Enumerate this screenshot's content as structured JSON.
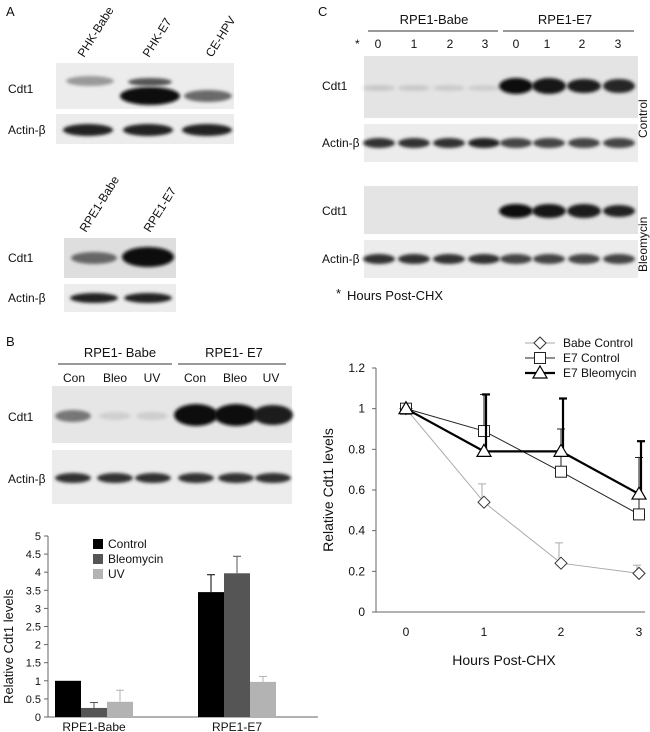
{
  "panels": {
    "A": {
      "letter": "A",
      "top_lanes": [
        "PHK-Babe",
        "PHK-E7",
        "CE-HPV"
      ],
      "bottom_lanes": [
        "RPE1-Babe",
        "RPE1-E7"
      ],
      "row_cdt1": "Cdt1",
      "row_actin": "Actin-β"
    },
    "B": {
      "letter": "B",
      "group_babe": "RPE1- Babe",
      "group_e7": "RPE1- E7",
      "lanes": [
        "Con",
        "Bleo",
        "UV",
        "Con",
        "Bleo",
        "UV"
      ],
      "row_cdt1": "Cdt1",
      "row_actin": "Actin-β"
    },
    "C": {
      "letter": "C",
      "group_babe": "RPE1-Babe",
      "group_e7": "RPE1-E7",
      "star": "*",
      "hours": [
        "0",
        "1",
        "2",
        "3",
        "0",
        "1",
        "2",
        "3"
      ],
      "row_cdt1": "Cdt1",
      "row_actin": "Actin-β",
      "side_control": "Control",
      "side_bleo": "Bleomycin",
      "footnote_star": "*",
      "footnote_text": "Hours Post-CHX"
    }
  },
  "chart_data": [
    {
      "type": "bar",
      "title": "",
      "xlabel": "",
      "ylabel": "Relative Cdt1 levels",
      "categories": [
        "RPE1-Babe",
        "RPE1-E7"
      ],
      "series": [
        {
          "name": "Control",
          "values": [
            1.0,
            3.45
          ],
          "err": [
            0,
            0.48
          ],
          "color": "#000000"
        },
        {
          "name": "Bleomycin",
          "values": [
            0.25,
            3.97
          ],
          "err": [
            0.15,
            0.47
          ],
          "color": "#555555"
        },
        {
          "name": "UV",
          "values": [
            0.42,
            0.97
          ],
          "err": [
            0.32,
            0.15
          ],
          "color": "#b3b3b3"
        }
      ],
      "ylim": [
        0,
        5
      ],
      "yticks": [
        "0",
        "0.5",
        "1",
        "1.5",
        "2",
        "2.5",
        "3",
        "3.5",
        "4",
        "4.5",
        "5"
      ],
      "legend": "top-left"
    },
    {
      "type": "line",
      "title": "",
      "xlabel": "Hours Post-CHX",
      "ylabel": "Relative Cdt1 levels",
      "x": [
        0,
        1,
        2,
        3
      ],
      "xticks": [
        "0",
        "1",
        "2",
        "3"
      ],
      "series": [
        {
          "name": "Babe Control",
          "marker": "diamond",
          "values": [
            1.0,
            0.54,
            0.24,
            0.19
          ],
          "err": [
            0,
            0.09,
            0.1,
            0.04
          ],
          "color": "#aaaaaa",
          "width": 1
        },
        {
          "name": "E7 Control",
          "marker": "square",
          "values": [
            1.0,
            0.89,
            0.69,
            0.48
          ],
          "err": [
            0,
            0.18,
            0.21,
            0.28
          ],
          "color": "#222222",
          "width": 1
        },
        {
          "name": "E7 Bleomycin",
          "marker": "triangle",
          "values": [
            1.0,
            0.79,
            0.79,
            0.58
          ],
          "err": [
            0,
            0.28,
            0.26,
            0.26
          ],
          "color": "#000000",
          "width": 2.2
        }
      ],
      "ylim": [
        0,
        1.2
      ],
      "yticks": [
        "0",
        "0.2",
        "0.4",
        "0.6",
        "0.8",
        "1",
        "1.2"
      ],
      "legend": "top-right"
    }
  ]
}
